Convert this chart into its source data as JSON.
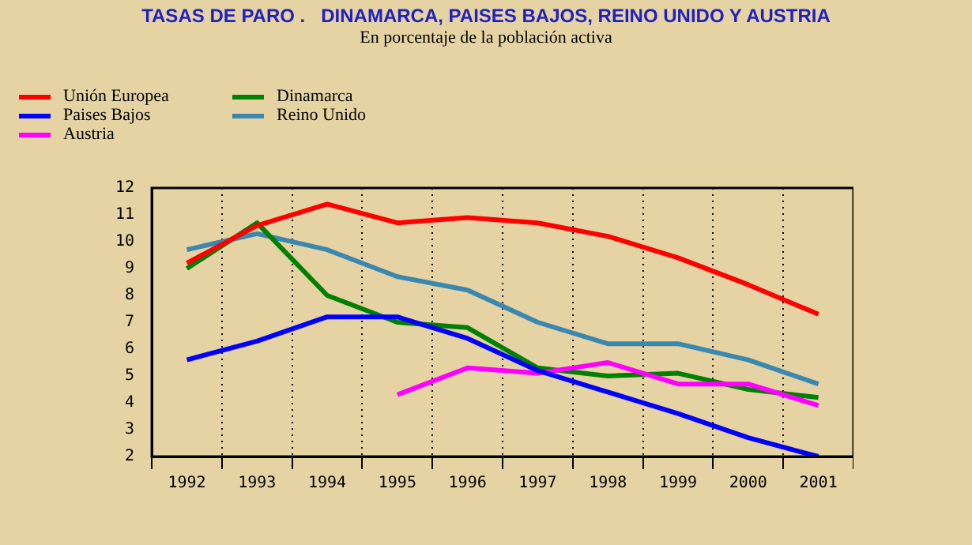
{
  "chart_data": {
    "type": "line",
    "title": "TASAS DE PARO .   DINAMARCA, PAISES BAJOS, REINO UNIDO Y AUSTRIA",
    "subtitle": "En porcentaje de la población activa",
    "categories": [
      "1992",
      "1993",
      "1994",
      "1995",
      "1996",
      "1997",
      "1998",
      "1999",
      "2000",
      "2001"
    ],
    "series": [
      {
        "name": "Unión Europea",
        "color": "#ff0000",
        "values": [
          9.2,
          10.6,
          11.4,
          10.7,
          10.9,
          10.7,
          10.2,
          9.4,
          8.4,
          7.3
        ]
      },
      {
        "name": "Paises Bajos",
        "color": "#0000ff",
        "values": [
          5.6,
          6.3,
          7.2,
          7.2,
          6.4,
          5.2,
          4.4,
          3.6,
          2.7,
          2.0
        ]
      },
      {
        "name": "Austria",
        "color": "#ff00ff",
        "values": [
          null,
          null,
          null,
          4.3,
          5.3,
          5.1,
          5.5,
          4.7,
          4.7,
          3.9
        ]
      },
      {
        "name": "Dinamarca",
        "color": "#008000",
        "values": [
          9.0,
          10.7,
          8.0,
          7.0,
          6.8,
          5.3,
          5.0,
          5.1,
          4.5,
          4.2
        ]
      },
      {
        "name": "Reino Unido",
        "color": "#3a88b0",
        "values": [
          9.7,
          10.3,
          9.7,
          8.7,
          8.2,
          7.0,
          6.2,
          6.2,
          5.6,
          4.7
        ]
      }
    ],
    "ylim": [
      2,
      12
    ],
    "yticks": [
      2,
      3,
      4,
      5,
      6,
      7,
      8,
      9,
      10,
      11,
      12
    ],
    "grid": "x",
    "legend": "top left",
    "marker": "none",
    "line_style": "solid"
  }
}
